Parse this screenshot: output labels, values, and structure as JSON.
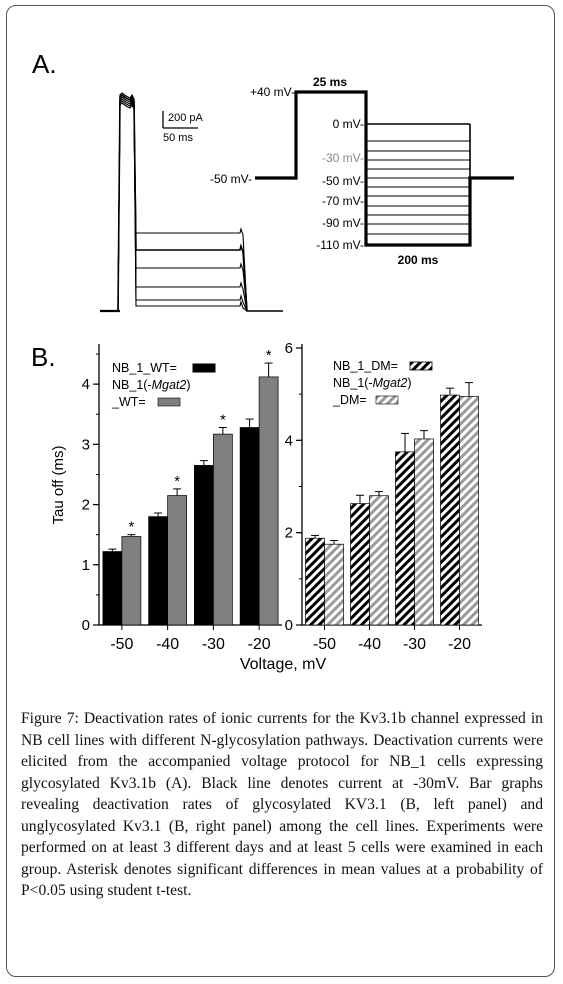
{
  "panel_a": {
    "label": "A.",
    "scalebar_current": "200 pA",
    "scalebar_time": "50 ms",
    "protocol": {
      "hold_label": "-50 mV-",
      "pre_label": "+40 mV-",
      "pre_duration": "25 ms",
      "test_duration": "200 ms",
      "step_labels": [
        "0 mV-",
        "-30 mV-",
        "-50 mV-",
        "-70 mV-",
        "-90 mV-",
        "-110 mV-"
      ],
      "highlight_color": "#888888"
    }
  },
  "panel_b": {
    "label": "B.",
    "xlabel": "Voltage, mV",
    "ylabel": "Tau off (ms)",
    "colors": {
      "wt": "#000000",
      "mgat2": "#7f7f7f"
    }
  },
  "chart_data": [
    {
      "type": "bar",
      "categories": [
        "-50",
        "-40",
        "-30",
        "-20"
      ],
      "ylim": [
        0,
        4.6
      ],
      "yticks": [
        "0",
        "1",
        "2",
        "3",
        "4"
      ],
      "legend_lines": [
        "NB_1_WT=",
        "NB_1(-",
        "Mgat2",
        ")",
        "_WT="
      ],
      "series": [
        {
          "name": "NB_1_WT",
          "values": [
            1.22,
            1.8,
            2.65,
            3.28
          ],
          "errors": [
            0.04,
            0.06,
            0.08,
            0.14
          ]
        },
        {
          "name": "NB_1(-Mgat2)_WT",
          "values": [
            1.47,
            2.15,
            3.17,
            4.12
          ],
          "errors": [
            0.03,
            0.11,
            0.11,
            0.23
          ]
        }
      ],
      "significance": [
        "*",
        "*",
        "*",
        "*"
      ]
    },
    {
      "type": "bar",
      "categories": [
        "-50",
        "-40",
        "-30",
        "-20"
      ],
      "ylim": [
        0,
        6
      ],
      "yticks": [
        "0",
        "2",
        "4",
        "6"
      ],
      "legend_lines": [
        "NB_1_DM=",
        "NB_1(-",
        "Mgat2",
        ")",
        "_DM="
      ],
      "series": [
        {
          "name": "NB_1_DM",
          "values": [
            1.88,
            2.63,
            3.75,
            4.98
          ],
          "errors": [
            0.06,
            0.18,
            0.4,
            0.15
          ]
        },
        {
          "name": "NB_1(-Mgat2)_DM",
          "values": [
            1.75,
            2.8,
            4.03,
            4.95
          ],
          "errors": [
            0.08,
            0.09,
            0.18,
            0.3
          ]
        }
      ]
    }
  ],
  "caption": {
    "label": "Figure 7:",
    "text": "Deactivation rates of ionic currents for the Kv3.1b channel expressed in NB cell lines with different N-glycosylation pathways. Deactivation currents were elicited from the accompanied voltage protocol for NB_1 cells expressing glycosylated Kv3.1b (A). Black line denotes current at -30mV. Bar graphs revealing deactivation rates of glycosylated KV3.1 (B, left panel) and unglycosylated Kv3.1 (B, right panel) among the cell lines. Experiments were performed on at least 3 different days and at least 5 cells were examined in each group. Asterisk denotes significant differences in mean values at a probability of P<0.05 using student t-test."
  }
}
